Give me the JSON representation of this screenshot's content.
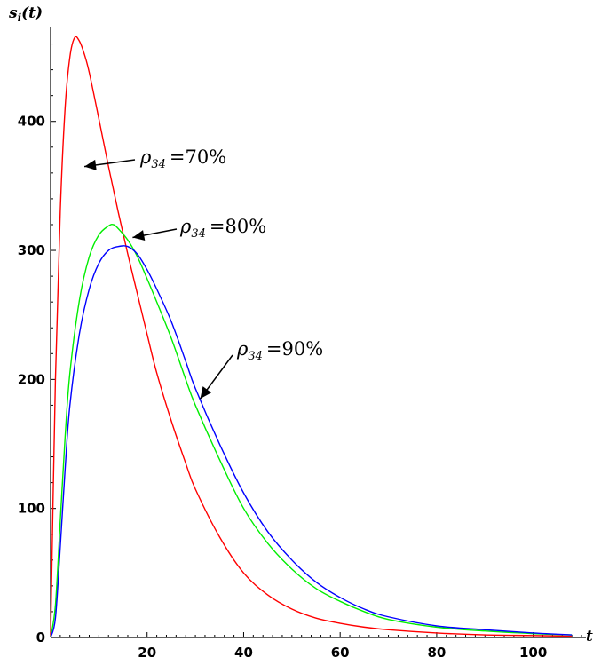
{
  "chart_data": {
    "type": "line",
    "title": "",
    "ylabel": "s",
    "ylabel_sub": "i",
    "ylabel_arg": "(t)",
    "xlabel": "t",
    "xlim": [
      0,
      110
    ],
    "ylim": [
      0,
      470
    ],
    "x_ticks": [
      20,
      40,
      60,
      80,
      100
    ],
    "y_ticks": [
      0,
      100,
      200,
      300,
      400
    ],
    "x_tick_labels": [
      "20",
      "40",
      "60",
      "80",
      "100"
    ],
    "y_tick_labels": [
      "0",
      "100",
      "200",
      "300",
      "400"
    ],
    "grid": false,
    "legend": "none",
    "series": [
      {
        "color": "#ff0000",
        "x": [
          0,
          1,
          2,
          3,
          4,
          5,
          6,
          7,
          8,
          10,
          12,
          14,
          16,
          18,
          20,
          22,
          25,
          28,
          30,
          35,
          40,
          45,
          50,
          55,
          60,
          65,
          70,
          80,
          90,
          100,
          108
        ],
        "y": [
          0,
          200,
          330,
          410,
          450,
          465,
          462,
          452,
          438,
          402,
          365,
          330,
          297,
          266,
          235,
          205,
          168,
          135,
          115,
          78,
          50,
          33,
          22,
          15,
          11,
          8,
          6,
          3.5,
          2,
          1.5,
          1
        ]
      },
      {
        "color": "#00ee00",
        "x": [
          0,
          1,
          2,
          3,
          4,
          6,
          8,
          10,
          12,
          13,
          14,
          16,
          18,
          20,
          22,
          25,
          28,
          30,
          35,
          40,
          45,
          50,
          55,
          60,
          65,
          70,
          80,
          90,
          100,
          108
        ],
        "y": [
          0,
          25,
          90,
          155,
          205,
          262,
          295,
          312,
          319,
          320,
          317,
          308,
          295,
          278,
          260,
          232,
          200,
          180,
          138,
          100,
          73,
          53,
          38,
          28,
          20,
          14,
          8,
          5,
          3,
          2
        ]
      },
      {
        "color": "#0000ff",
        "x": [
          0,
          1,
          2,
          3,
          4,
          6,
          8,
          10,
          12,
          14,
          16,
          18,
          20,
          22,
          25,
          28,
          30,
          35,
          40,
          45,
          50,
          55,
          60,
          65,
          70,
          80,
          90,
          100,
          108
        ],
        "y": [
          0,
          15,
          70,
          130,
          180,
          236,
          270,
          290,
          300,
          303,
          303,
          297,
          285,
          270,
          245,
          214,
          193,
          150,
          112,
          82,
          60,
          43,
          31,
          22,
          16,
          9,
          6,
          3.5,
          2
        ]
      }
    ],
    "annotations": [
      {
        "symbol": "ρ",
        "sub": "34",
        "text": "=70%",
        "point": [
          7,
          365
        ]
      },
      {
        "symbol": "ρ",
        "sub": "34",
        "text": "=80%",
        "point": [
          17,
          310
        ]
      },
      {
        "symbol": "ρ",
        "sub": "34",
        "text": "=90%",
        "point": [
          31,
          185
        ]
      }
    ]
  }
}
